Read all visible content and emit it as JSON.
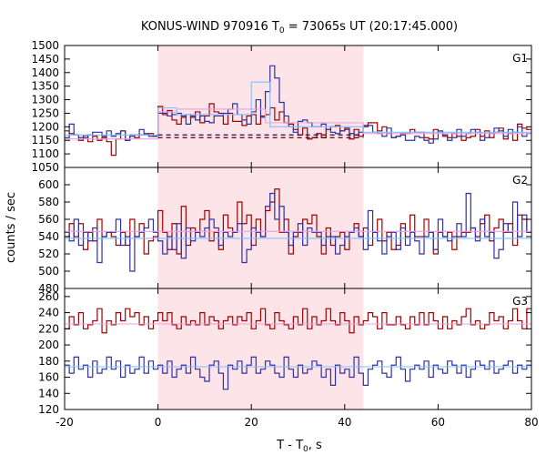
{
  "chart_data": {
    "type": "line",
    "title": {
      "prefix": "KONUS-WIND 970916 T",
      "sub": "0",
      "suffix": " = 73065s UT (20:17:45.000)"
    },
    "xlabel": {
      "prefix": "T - T",
      "sub": "0",
      "suffix": ", s"
    },
    "ylabel": "counts / sec",
    "xlim": [
      -20,
      80
    ],
    "xticks": [
      -20,
      0,
      20,
      40,
      60,
      80
    ],
    "shaded_interval": [
      0,
      44
    ],
    "colors": {
      "red": "#a00000",
      "blue": "#3030a0",
      "pink": "#e8a0e0",
      "cyan": "#80c0ff",
      "shade": "#fde4e8",
      "navy": "#101060",
      "darkred": "#600000"
    },
    "panels": [
      {
        "label": "G1",
        "ylim": [
          1050,
          1500
        ],
        "yticks": [
          1050,
          1100,
          1150,
          1200,
          1250,
          1300,
          1350,
          1400,
          1450,
          1500
        ],
        "series": [
          {
            "color": "red",
            "values": [
              1185,
              1175,
              1170,
              1150,
              1168,
              1145,
              1165,
              1150,
              1160,
              1145,
              1095,
              1155,
              1185,
              1150,
              1170,
              1160,
              1170,
              1170,
              1175,
              1165,
              1275,
              1245,
              1260,
              1225,
              1210,
              1235,
              1245,
              1235,
              1255,
              1215,
              1240,
              1285,
              1255,
              1250,
              1210,
              1250,
              1220,
              1220,
              1205,
              1240,
              1245,
              1210,
              1240,
              1245,
              1270,
              1225,
              1255,
              1215,
              1210,
              1190,
              1170,
              1195,
              1155,
              1160,
              1175,
              1160,
              1190,
              1200,
              1205,
              1185,
              1195,
              1155,
              1190,
              1165,
              1205,
              1215,
              1215,
              1185,
              1200,
              1175,
              1160,
              1165,
              1175,
              1175,
              1190,
              1180,
              1180,
              1160,
              1155,
              1190,
              1180,
              1165,
              1160,
              1175,
              1165,
              1150,
              1160,
              1165,
              1190,
              1165,
              1185,
              1160,
              1180,
              1195,
              1155,
              1175,
              1150,
              1210,
              1195,
              1190
            ]
          },
          {
            "color": "blue",
            "values": [
              1160,
              1210,
              1170,
              1160,
              1160,
              1170,
              1180,
              1180,
              1165,
              1185,
              1165,
              1175,
              1185,
              1150,
              1165,
              1170,
              1190,
              1175,
              1165,
              1165,
              1250,
              1250,
              1240,
              1245,
              1250,
              1240,
              1210,
              1240,
              1225,
              1240,
              1220,
              1215,
              1240,
              1240,
              1250,
              1265,
              1285,
              1245,
              1225,
              1210,
              1255,
              1300,
              1235,
              1330,
              1425,
              1380,
              1290,
              1240,
              1200,
              1180,
              1220,
              1225,
              1215,
              1200,
              1200,
              1210,
              1190,
              1180,
              1175,
              1185,
              1190,
              1175,
              1170,
              1180,
              1200,
              1205,
              1180,
              1175,
              1165,
              1195,
              1160,
              1165,
              1170,
              1150,
              1150,
              1165,
              1160,
              1150,
              1140,
              1155,
              1185,
              1170,
              1150,
              1160,
              1190,
              1165,
              1175,
              1190,
              1180,
              1150,
              1160,
              1175,
              1195,
              1185,
              1165,
              1190,
              1180,
              1200,
              1165,
              1175
            ]
          }
        ],
        "fits": [
          {
            "color": "pink",
            "steps": [
              [
                -20,
                0,
                1155
              ],
              [
                0,
                4,
                1255
              ],
              [
                4,
                23,
                1265
              ],
              [
                23,
                44,
                1215
              ],
              [
                44,
                80,
                1175
              ]
            ]
          },
          {
            "color": "cyan",
            "steps": [
              [
                -20,
                0,
                1170
              ],
              [
                0,
                4,
                1270
              ],
              [
                4,
                20,
                1245
              ],
              [
                20,
                24,
                1365
              ],
              [
                24,
                44,
                1200
              ],
              [
                44,
                80,
                1180
              ]
            ]
          }
        ],
        "backgrounds": [
          {
            "color": "darkred",
            "value": 1160,
            "range": [
              0,
              44
            ]
          },
          {
            "color": "navy",
            "value": 1170,
            "range": [
              0,
              44
            ]
          }
        ]
      },
      {
        "label": "G2",
        "ylim": [
          480,
          620
        ],
        "yticks": [
          480,
          500,
          520,
          540,
          560,
          580,
          600
        ],
        "series": [
          {
            "color": "red",
            "values": [
              540,
              555,
              540,
              555,
              525,
              545,
              535,
              560,
              540,
              545,
              540,
              530,
              545,
              530,
              560,
              540,
              555,
              520,
              535,
              540,
              570,
              545,
              525,
              555,
              520,
              575,
              530,
              550,
              545,
              560,
              570,
              535,
              545,
              525,
              565,
              550,
              545,
              580,
              555,
              565,
              530,
              560,
              540,
              570,
              580,
              595,
              545,
              560,
              520,
              540,
              545,
              560,
              555,
              565,
              540,
              520,
              550,
              530,
              540,
              545,
              525,
              545,
              555,
              540,
              550,
              530,
              545,
              560,
              535,
              545,
              525,
              530,
              555,
              540,
              565,
              540,
              540,
              560,
              545,
              520,
              545,
              540,
              545,
              525,
              540,
              545,
              545,
              550,
              540,
              555,
              565,
              535,
              550,
              560,
              545,
              555,
              530,
              565,
              560,
              545
            ]
          },
          {
            "color": "blue",
            "values": [
              545,
              535,
              560,
              530,
              545,
              535,
              550,
              510,
              540,
              545,
              545,
              560,
              530,
              540,
              500,
              540,
              545,
              550,
              560,
              545,
              535,
              520,
              540,
              525,
              555,
              515,
              550,
              535,
              545,
              540,
              550,
              560,
              550,
              530,
              545,
              540,
              545,
              555,
              510,
              525,
              550,
              545,
              540,
              575,
              590,
              560,
              575,
              545,
              530,
              545,
              555,
              530,
              550,
              545,
              545,
              530,
              540,
              540,
              520,
              530,
              540,
              545,
              550,
              540,
              525,
              570,
              545,
              535,
              520,
              540,
              545,
              525,
              550,
              530,
              545,
              535,
              520,
              540,
              545,
              525,
              560,
              540,
              535,
              540,
              555,
              540,
              590,
              550,
              535,
              560,
              540,
              545,
              515,
              525,
              555,
              545,
              580,
              540,
              565,
              545
            ]
          }
        ],
        "fits": [
          {
            "color": "pink",
            "steps": [
              [
                -20,
                80,
                546
              ]
            ]
          },
          {
            "color": "cyan",
            "steps": [
              [
                -20,
                80,
                538
              ]
            ]
          }
        ],
        "backgrounds": []
      },
      {
        "label": "G3",
        "ylim": [
          120,
          270
        ],
        "yticks": [
          120,
          140,
          160,
          180,
          200,
          220,
          240,
          260
        ],
        "series": [
          {
            "color": "red",
            "values": [
              220,
              235,
              225,
              240,
              220,
              225,
              230,
              245,
              215,
              230,
              225,
              240,
              230,
              245,
              235,
              240,
              225,
              235,
              220,
              230,
              240,
              230,
              240,
              225,
              220,
              235,
              225,
              230,
              225,
              240,
              225,
              235,
              230,
              220,
              230,
              235,
              225,
              235,
              230,
              240,
              220,
              230,
              245,
              225,
              220,
              240,
              230,
              225,
              220,
              235,
              225,
              245,
              220,
              235,
              225,
              230,
              245,
              230,
              225,
              240,
              230,
              215,
              235,
              225,
              230,
              240,
              235,
              220,
              240,
              225,
              225,
              235,
              225,
              220,
              235,
              225,
              240,
              225,
              240,
              230,
              220,
              235,
              220,
              230,
              225,
              235,
              245,
              225,
              230,
              220,
              225,
              240,
              230,
              235,
              220,
              230,
              245,
              230,
              220,
              245
            ]
          },
          {
            "color": "blue",
            "values": [
              175,
              165,
              185,
              170,
              175,
              160,
              180,
              165,
              170,
              185,
              170,
              180,
              160,
              175,
              165,
              170,
              185,
              165,
              180,
              170,
              175,
              165,
              180,
              160,
              170,
              175,
              165,
              185,
              170,
              160,
              155,
              175,
              180,
              165,
              145,
              175,
              170,
              180,
              165,
              175,
              185,
              165,
              170,
              180,
              175,
              165,
              160,
              185,
              170,
              160,
              175,
              165,
              170,
              180,
              175,
              160,
              170,
              150,
              175,
              165,
              170,
              160,
              185,
              165,
              150,
              170,
              175,
              180,
              165,
              160,
              175,
              185,
              170,
              155,
              170,
              175,
              170,
              180,
              160,
              175,
              170,
              165,
              180,
              175,
              165,
              175,
              160,
              170,
              180,
              175,
              170,
              180,
              165,
              170,
              175,
              180,
              165,
              175,
              170,
              175
            ]
          }
        ],
        "fits": [
          {
            "color": "pink",
            "steps": [
              [
                -20,
                80,
                226
              ]
            ]
          },
          {
            "color": "cyan",
            "steps": [
              [
                -20,
                80,
                173
              ]
            ]
          }
        ],
        "backgrounds": []
      }
    ]
  }
}
